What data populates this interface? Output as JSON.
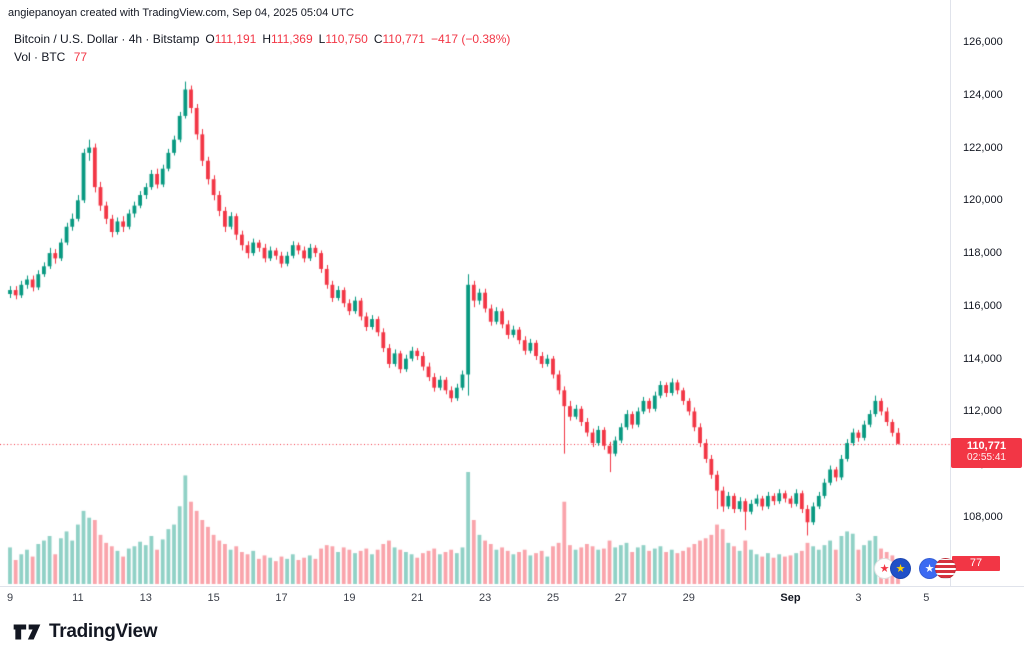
{
  "attribution": "angiepanoyan created with TradingView.com, Sep 04, 2025 05:04 UTC",
  "legend": {
    "symbol_line": "Bitcoin / U.S. Dollar · 4h · Bitstamp",
    "ohlc": {
      "o_label": "O",
      "o": "111,191",
      "h_label": "H",
      "h": "111,369",
      "l_label": "L",
      "l": "110,750",
      "c_label": "C",
      "c": "110,771",
      "change": "−417 (−0.38%)"
    },
    "volume_label": "Vol · BTC",
    "volume_value": "77"
  },
  "price_label": {
    "price": "110,771",
    "countdown": "02:55:41"
  },
  "volume_axis_label": "77",
  "logo_text": "TradingView",
  "colors": {
    "up": "#089981",
    "down": "#f23645",
    "vol_up": "rgba(8,153,129,0.45)",
    "vol_down": "rgba(242,54,69,0.45)",
    "accent_red": "#f23645",
    "text": "#131722",
    "border": "#e0e3eb"
  },
  "chart_data": {
    "type": "candlestick+volume",
    "title": "Bitcoin / U.S. Dollar · 4h · Bitstamp",
    "current_price": 110771,
    "y_axis": {
      "min": 106500,
      "max": 126500,
      "ticks": [
        {
          "v": 126000,
          "label": "126,000"
        },
        {
          "v": 124000,
          "label": "124,000"
        },
        {
          "v": 122000,
          "label": "122,000"
        },
        {
          "v": 120000,
          "label": "120,000"
        },
        {
          "v": 118000,
          "label": "118,000"
        },
        {
          "v": 116000,
          "label": "116,000"
        },
        {
          "v": 114000,
          "label": "114,000"
        },
        {
          "v": 112000,
          "label": "112,000"
        },
        {
          "v": 110000,
          "label": "110,000"
        },
        {
          "v": 108000,
          "label": "108,000"
        }
      ]
    },
    "x_axis": {
      "ticks": [
        {
          "i": 0,
          "label": "9"
        },
        {
          "i": 12,
          "label": "11"
        },
        {
          "i": 24,
          "label": "13"
        },
        {
          "i": 36,
          "label": "15"
        },
        {
          "i": 48,
          "label": "17"
        },
        {
          "i": 60,
          "label": "19"
        },
        {
          "i": 72,
          "label": "21"
        },
        {
          "i": 84,
          "label": "23"
        },
        {
          "i": 96,
          "label": "25"
        },
        {
          "i": 108,
          "label": "27"
        },
        {
          "i": 120,
          "label": "29"
        },
        {
          "i": 138,
          "label": "Sep",
          "bold": true
        },
        {
          "i": 150,
          "label": "3"
        },
        {
          "i": 162,
          "label": "5"
        }
      ]
    },
    "candles": [
      [
        116450,
        116750,
        116300,
        116600,
        320
      ],
      [
        116600,
        116750,
        116250,
        116400,
        210
      ],
      [
        116400,
        116950,
        116300,
        116800,
        260
      ],
      [
        116800,
        117150,
        116650,
        117000,
        300
      ],
      [
        117000,
        117150,
        116550,
        116700,
        240
      ],
      [
        116700,
        117350,
        116600,
        117200,
        350
      ],
      [
        117200,
        117650,
        117100,
        117500,
        380
      ],
      [
        117500,
        118200,
        117400,
        118000,
        420
      ],
      [
        118000,
        118150,
        117600,
        117800,
        260
      ],
      [
        117800,
        118550,
        117700,
        118400,
        400
      ],
      [
        118400,
        119150,
        118300,
        119000,
        460
      ],
      [
        119000,
        119500,
        118850,
        119300,
        380
      ],
      [
        119300,
        120200,
        119200,
        120000,
        520
      ],
      [
        120000,
        121950,
        119900,
        121800,
        640
      ],
      [
        121800,
        122300,
        121500,
        122000,
        580
      ],
      [
        122000,
        122150,
        120300,
        120500,
        560
      ],
      [
        120500,
        120700,
        119600,
        119800,
        430
      ],
      [
        119800,
        119950,
        119100,
        119300,
        360
      ],
      [
        119300,
        119450,
        118600,
        118800,
        330
      ],
      [
        118800,
        119350,
        118700,
        119200,
        290
      ],
      [
        119200,
        119400,
        118800,
        119000,
        240
      ],
      [
        119000,
        119650,
        118900,
        119500,
        310
      ],
      [
        119500,
        119950,
        119350,
        119800,
        330
      ],
      [
        119800,
        120350,
        119700,
        120200,
        370
      ],
      [
        120200,
        120650,
        120050,
        120500,
        340
      ],
      [
        120500,
        121150,
        120400,
        121000,
        420
      ],
      [
        121000,
        121200,
        120450,
        120600,
        300
      ],
      [
        120600,
        121350,
        120500,
        121200,
        390
      ],
      [
        121200,
        121950,
        121100,
        121800,
        480
      ],
      [
        121800,
        122450,
        121700,
        122300,
        520
      ],
      [
        122300,
        123350,
        122200,
        123200,
        680
      ],
      [
        123200,
        124500,
        123100,
        124200,
        950
      ],
      [
        124200,
        124350,
        123300,
        123500,
        720
      ],
      [
        123500,
        123650,
        122300,
        122500,
        640
      ],
      [
        122500,
        122700,
        121300,
        121500,
        560
      ],
      [
        121500,
        121650,
        120600,
        120800,
        500
      ],
      [
        120800,
        120950,
        120000,
        120200,
        430
      ],
      [
        120200,
        120350,
        119400,
        119600,
        380
      ],
      [
        119600,
        119750,
        118800,
        119000,
        350
      ],
      [
        119000,
        119550,
        118900,
        119400,
        300
      ],
      [
        119400,
        119500,
        118500,
        118700,
        330
      ],
      [
        118700,
        118850,
        118100,
        118300,
        280
      ],
      [
        118300,
        118450,
        117800,
        118000,
        260
      ],
      [
        118000,
        118550,
        117900,
        118400,
        290
      ],
      [
        118400,
        118500,
        118050,
        118200,
        220
      ],
      [
        118200,
        118350,
        117650,
        117800,
        250
      ],
      [
        117800,
        118250,
        117700,
        118100,
        230
      ],
      [
        118100,
        118200,
        117750,
        117900,
        200
      ],
      [
        117900,
        118050,
        117450,
        117600,
        240
      ],
      [
        117600,
        118050,
        117500,
        117900,
        220
      ],
      [
        117900,
        118450,
        117800,
        118300,
        260
      ],
      [
        118300,
        118400,
        117950,
        118100,
        210
      ],
      [
        118100,
        118250,
        117650,
        117800,
        230
      ],
      [
        117800,
        118350,
        117700,
        118200,
        250
      ],
      [
        118200,
        118300,
        117850,
        118000,
        220
      ],
      [
        118000,
        118100,
        117250,
        117400,
        310
      ],
      [
        117400,
        117550,
        116650,
        116800,
        340
      ],
      [
        116800,
        116950,
        116150,
        116300,
        330
      ],
      [
        116300,
        116750,
        116200,
        116600,
        280
      ],
      [
        116600,
        116700,
        115950,
        116100,
        320
      ],
      [
        116100,
        116250,
        115650,
        115800,
        300
      ],
      [
        115800,
        116350,
        115700,
        116200,
        270
      ],
      [
        116200,
        116300,
        115450,
        115600,
        290
      ],
      [
        115600,
        115750,
        115050,
        115200,
        310
      ],
      [
        115200,
        115650,
        115100,
        115500,
        260
      ],
      [
        115500,
        115600,
        114850,
        115000,
        300
      ],
      [
        115000,
        115150,
        114250,
        114400,
        350
      ],
      [
        114400,
        114550,
        113650,
        113800,
        380
      ],
      [
        113800,
        114350,
        113700,
        114200,
        320
      ],
      [
        114200,
        114300,
        113450,
        113600,
        300
      ],
      [
        113600,
        114150,
        113500,
        114000,
        280
      ],
      [
        114000,
        114450,
        113900,
        114300,
        260
      ],
      [
        114300,
        114400,
        113950,
        114100,
        230
      ],
      [
        114100,
        114250,
        113550,
        113700,
        270
      ],
      [
        113700,
        113850,
        113150,
        113300,
        290
      ],
      [
        113300,
        113450,
        112750,
        112900,
        310
      ],
      [
        112900,
        113350,
        112800,
        113200,
        260
      ],
      [
        113200,
        113300,
        112650,
        112800,
        280
      ],
      [
        112800,
        112950,
        112350,
        112500,
        300
      ],
      [
        112500,
        113050,
        112400,
        112900,
        270
      ],
      [
        112900,
        113550,
        112800,
        113400,
        320
      ],
      [
        113400,
        117200,
        112600,
        116800,
        980
      ],
      [
        116800,
        116950,
        115950,
        116200,
        560
      ],
      [
        116200,
        116650,
        116050,
        116500,
        430
      ],
      [
        116500,
        116650,
        115750,
        115900,
        380
      ],
      [
        115900,
        116050,
        115250,
        115400,
        350
      ],
      [
        115400,
        115950,
        115300,
        115800,
        300
      ],
      [
        115800,
        115900,
        115150,
        115300,
        320
      ],
      [
        115300,
        115450,
        114750,
        114900,
        290
      ],
      [
        114900,
        115250,
        114800,
        115100,
        260
      ],
      [
        115100,
        115200,
        114550,
        114700,
        280
      ],
      [
        114700,
        114850,
        114150,
        114300,
        300
      ],
      [
        114300,
        114750,
        114200,
        114600,
        250
      ],
      [
        114600,
        114700,
        113950,
        114100,
        270
      ],
      [
        114100,
        114250,
        113650,
        113800,
        290
      ],
      [
        113800,
        114150,
        113700,
        114000,
        240
      ],
      [
        114000,
        114100,
        113250,
        113400,
        330
      ],
      [
        113400,
        113550,
        112650,
        112800,
        360
      ],
      [
        112800,
        112950,
        110400,
        112200,
        720
      ],
      [
        112200,
        112400,
        111650,
        111800,
        340
      ],
      [
        111800,
        112250,
        111700,
        112100,
        300
      ],
      [
        112100,
        112200,
        111450,
        111600,
        320
      ],
      [
        111600,
        111750,
        111050,
        111200,
        350
      ],
      [
        111200,
        111350,
        110650,
        110800,
        330
      ],
      [
        110800,
        111450,
        110700,
        111300,
        300
      ],
      [
        111300,
        111400,
        110550,
        110700,
        310
      ],
      [
        110700,
        110850,
        109700,
        110400,
        380
      ],
      [
        110400,
        111050,
        110300,
        110900,
        320
      ],
      [
        110900,
        111550,
        110800,
        111400,
        340
      ],
      [
        111400,
        112050,
        111300,
        111900,
        360
      ],
      [
        111900,
        112000,
        111350,
        111500,
        280
      ],
      [
        111500,
        112150,
        111400,
        112000,
        320
      ],
      [
        112000,
        112550,
        111900,
        112400,
        340
      ],
      [
        112400,
        112500,
        111950,
        112100,
        290
      ],
      [
        112100,
        112750,
        112000,
        112600,
        310
      ],
      [
        112600,
        113150,
        112500,
        113000,
        330
      ],
      [
        113000,
        113100,
        112550,
        112700,
        280
      ],
      [
        112700,
        113250,
        112600,
        113100,
        300
      ],
      [
        113100,
        113200,
        112650,
        112800,
        270
      ],
      [
        112800,
        112900,
        112250,
        112400,
        290
      ],
      [
        112400,
        112500,
        111850,
        112000,
        320
      ],
      [
        112000,
        112150,
        111250,
        111400,
        350
      ],
      [
        111400,
        111550,
        110650,
        110800,
        380
      ],
      [
        110800,
        110950,
        110050,
        110200,
        400
      ],
      [
        110200,
        110350,
        109450,
        109600,
        430
      ],
      [
        109600,
        109750,
        108300,
        109000,
        520
      ],
      [
        109000,
        109150,
        108200,
        108400,
        480
      ],
      [
        108400,
        108950,
        108300,
        108800,
        360
      ],
      [
        108800,
        108900,
        108150,
        108300,
        330
      ],
      [
        108300,
        108750,
        108200,
        108600,
        290
      ],
      [
        108600,
        108700,
        107500,
        108200,
        380
      ],
      [
        108200,
        108650,
        108100,
        108500,
        300
      ],
      [
        108500,
        108850,
        108400,
        108700,
        260
      ],
      [
        108700,
        108800,
        108250,
        108400,
        240
      ],
      [
        108400,
        108950,
        108300,
        108800,
        270
      ],
      [
        108800,
        108900,
        108450,
        108600,
        230
      ],
      [
        108600,
        109050,
        108500,
        108900,
        260
      ],
      [
        108900,
        109000,
        108550,
        108700,
        240
      ],
      [
        108700,
        108800,
        108350,
        108500,
        250
      ],
      [
        108500,
        109050,
        108400,
        108900,
        270
      ],
      [
        108900,
        109000,
        108150,
        108300,
        290
      ],
      [
        108300,
        108450,
        107300,
        107800,
        360
      ],
      [
        107800,
        108550,
        107700,
        108400,
        330
      ],
      [
        108400,
        108950,
        108300,
        108800,
        300
      ],
      [
        108800,
        109450,
        108700,
        109300,
        340
      ],
      [
        109300,
        109950,
        109200,
        109800,
        380
      ],
      [
        109800,
        109900,
        109350,
        109500,
        300
      ],
      [
        109500,
        110350,
        109400,
        110200,
        420
      ],
      [
        110200,
        110950,
        110100,
        110800,
        460
      ],
      [
        110800,
        111350,
        110700,
        111200,
        440
      ],
      [
        111200,
        111300,
        110850,
        111000,
        300
      ],
      [
        111000,
        111650,
        110900,
        111500,
        340
      ],
      [
        111500,
        112050,
        111400,
        111900,
        380
      ],
      [
        111900,
        112600,
        111800,
        112400,
        420
      ],
      [
        112400,
        112500,
        111850,
        112000,
        310
      ],
      [
        112000,
        112150,
        111450,
        111600,
        280
      ],
      [
        111600,
        111700,
        111050,
        111191,
        250
      ],
      [
        111191,
        111369,
        110750,
        110771,
        77
      ]
    ]
  }
}
